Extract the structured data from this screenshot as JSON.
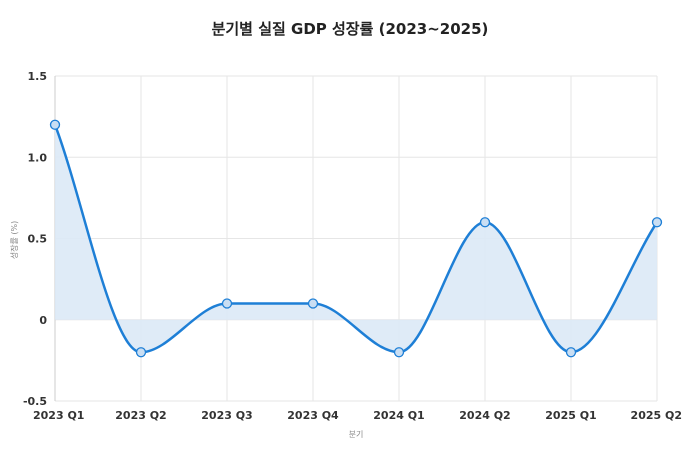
{
  "chart_data": {
    "type": "area",
    "title": "분기별 실질 GDP 성장률 (2023~2025)",
    "xlabel": "분기",
    "ylabel": "성장률 (%)",
    "categories": [
      "2023 Q1",
      "2023 Q2",
      "2023 Q3",
      "2023 Q4",
      "2024 Q1",
      "2024 Q2",
      "2025 Q1",
      "2025 Q2"
    ],
    "series": [
      {
        "values": [
          1.2,
          -0.2,
          0.1,
          0.1,
          -0.2,
          0.6,
          -0.2,
          0.6
        ]
      }
    ],
    "ylim": [
      -0.5,
      1.5
    ],
    "yticks": [
      {
        "value": 1.5,
        "label": "1.5"
      },
      {
        "value": 1.0,
        "label": "1.0"
      },
      {
        "value": 0.5,
        "label": "0.5"
      },
      {
        "value": 0,
        "label": "0"
      },
      {
        "value": -0.5,
        "label": "-0.5"
      }
    ],
    "grid": true,
    "smooth": true,
    "colors": {
      "line": "#1e7fd6",
      "fill": "#dce9f6",
      "grid": "#e6e6e6",
      "axis": "#cccccc"
    }
  }
}
